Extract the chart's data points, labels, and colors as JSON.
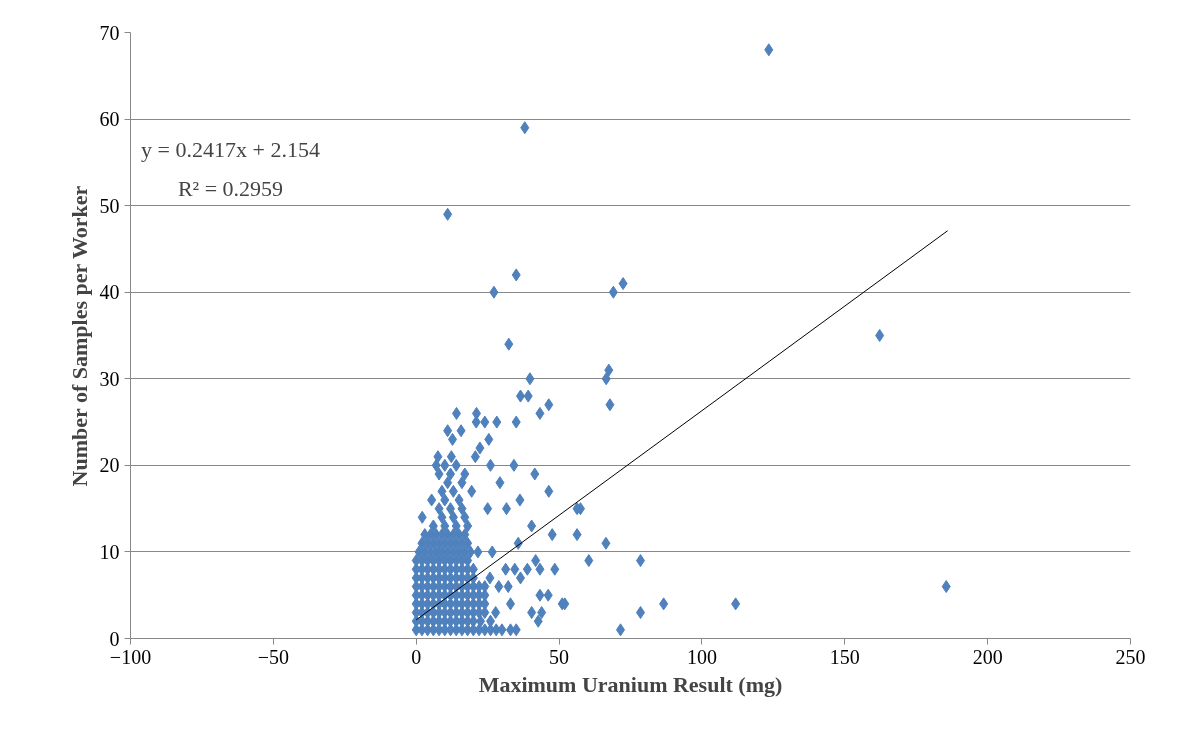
{
  "chart_data": {
    "type": "scatter",
    "xlabel": "Maximum Uranium Result (mg)",
    "ylabel": "Number of Samples per Worker",
    "annotations": [
      "y = 0.2417x + 2.154",
      "R² = 0.2959"
    ],
    "xlim": [
      -100,
      250
    ],
    "xticks": [
      -100,
      -50,
      0,
      50,
      100,
      150,
      200,
      250
    ],
    "ylim": [
      0,
      70
    ],
    "yticks": [
      0,
      10,
      20,
      30,
      40,
      50,
      60,
      70
    ],
    "grid": "y",
    "series": [
      {
        "marker": "diamond",
        "color": "#4f81bd",
        "x": [
          0,
          2,
          4,
          6,
          8,
          10,
          12,
          14,
          16,
          18,
          20,
          22,
          24,
          26,
          28,
          30,
          33,
          35,
          71.5,
          0,
          2,
          4,
          6,
          8,
          10,
          12,
          14,
          16,
          18,
          20,
          22.5,
          26,
          42.7,
          0,
          2,
          4,
          6,
          8,
          10,
          12,
          14,
          16,
          18,
          20,
          22,
          24,
          27.8,
          40.4,
          43.9,
          78.5,
          0,
          2,
          4,
          6,
          8,
          10,
          12,
          14,
          16,
          18,
          20,
          22,
          24,
          33,
          51.1,
          52,
          86.6,
          111.8,
          0,
          2,
          4,
          6,
          8,
          10,
          12,
          14,
          16,
          18,
          20,
          22,
          24,
          43.3,
          46.2,
          0,
          2,
          4,
          6,
          8,
          10,
          12,
          14,
          16,
          18,
          20,
          22,
          24,
          28.9,
          32.2,
          185.5,
          0,
          2,
          4,
          6,
          8,
          10,
          12,
          14,
          16,
          18,
          20,
          25.8,
          36.5,
          0,
          2,
          4,
          6,
          8,
          10,
          12,
          14,
          16,
          18,
          20,
          31.3,
          34.5,
          38.9,
          43.3,
          48.5,
          0,
          2,
          4,
          6,
          8,
          10,
          12,
          14,
          16,
          18,
          41.8,
          60.4,
          78.5,
          1,
          3,
          5,
          7,
          9,
          11,
          13,
          15,
          17,
          19,
          21.6,
          26.6,
          2,
          4,
          6,
          8,
          10,
          12,
          14,
          16,
          18,
          35.7,
          66.4,
          3,
          5,
          7,
          9,
          11,
          13,
          15,
          17,
          47.6,
          56.3,
          6,
          10,
          14,
          18,
          40.4,
          2.1,
          9,
          13,
          17,
          8,
          12,
          16,
          25,
          31.6,
          56.3,
          57.5,
          5.4,
          10,
          15,
          36.3,
          9,
          13,
          19.4,
          46.4,
          11,
          16,
          29.3,
          8,
          12,
          17,
          41.5,
          7,
          10,
          14,
          26,
          34.2,
          7.6,
          12.3,
          20.7,
          22.3,
          12.7,
          25.4,
          11,
          15.7,
          21,
          24,
          28.2,
          35,
          14.1,
          21.1,
          43.3,
          46.4,
          67.8,
          36.5,
          39.2,
          39.8,
          66.5,
          67.4,
          32.4,
          162.2,
          27.2,
          69,
          72.4,
          35,
          11,
          38,
          123.4
        ],
        "values": [
          1,
          1,
          1,
          1,
          1,
          1,
          1,
          1,
          1,
          1,
          1,
          1,
          1,
          1,
          1,
          1,
          1,
          1,
          1,
          2,
          2,
          2,
          2,
          2,
          2,
          2,
          2,
          2,
          2,
          2,
          2,
          2,
          2,
          3,
          3,
          3,
          3,
          3,
          3,
          3,
          3,
          3,
          3,
          3,
          3,
          3,
          3,
          3,
          3,
          3,
          4,
          4,
          4,
          4,
          4,
          4,
          4,
          4,
          4,
          4,
          4,
          4,
          4,
          4,
          4,
          4,
          4,
          4,
          5,
          5,
          5,
          5,
          5,
          5,
          5,
          5,
          5,
          5,
          5,
          5,
          5,
          5,
          5,
          6,
          6,
          6,
          6,
          6,
          6,
          6,
          6,
          6,
          6,
          6,
          6,
          6,
          6,
          6,
          6,
          7,
          7,
          7,
          7,
          7,
          7,
          7,
          7,
          7,
          7,
          7,
          7,
          7,
          8,
          8,
          8,
          8,
          8,
          8,
          8,
          8,
          8,
          8,
          8,
          8,
          8,
          8,
          8,
          8,
          9,
          9,
          9,
          9,
          9,
          9,
          9,
          9,
          9,
          9,
          9,
          9,
          9,
          10,
          10,
          10,
          10,
          10,
          10,
          10,
          10,
          10,
          10,
          10,
          10,
          11,
          11,
          11,
          11,
          11,
          11,
          11,
          11,
          11,
          11,
          11,
          12,
          12,
          12,
          12,
          12,
          12,
          12,
          12,
          12,
          12,
          13,
          13,
          13,
          13,
          13,
          14,
          14,
          14,
          14,
          15,
          15,
          15,
          15,
          15,
          15,
          15,
          16,
          16,
          16,
          16,
          17,
          17,
          17,
          17,
          18,
          18,
          18,
          19,
          19,
          19,
          19,
          20,
          20,
          20,
          20,
          20,
          21,
          21,
          21,
          22,
          23,
          23,
          24,
          24,
          25,
          25,
          25,
          25,
          26,
          26,
          26,
          27,
          27,
          28,
          28,
          30,
          30,
          31,
          34,
          35,
          40,
          40,
          41,
          42,
          49,
          59,
          68
        ]
      },
      {
        "type": "line",
        "color": "#000000",
        "x": [
          0,
          186
        ],
        "values": [
          2.15,
          47.1
        ]
      }
    ]
  }
}
